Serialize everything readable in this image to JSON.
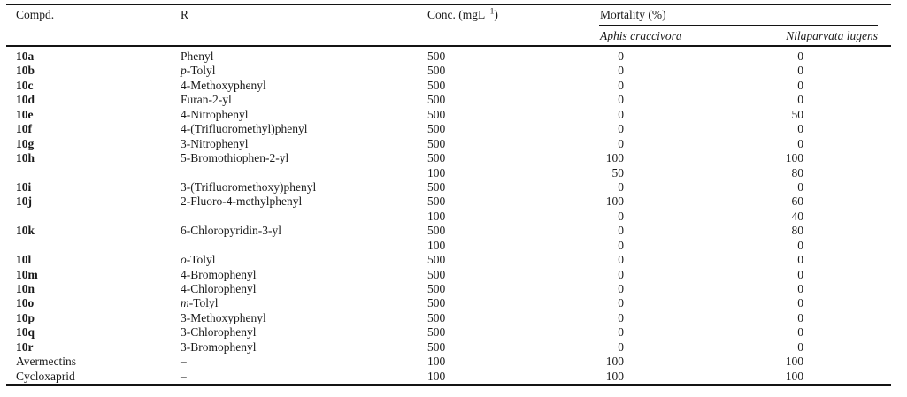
{
  "colors": {
    "background": "#ffffff",
    "text": "#1a1a1a",
    "rule": "#141414"
  },
  "table": {
    "header": {
      "compd": "Compd.",
      "r": "R",
      "conc_prefix": "Conc. (mgL",
      "conc_sup": "−1",
      "conc_suffix": ")",
      "mortality": "Mortality (%)",
      "species": [
        {
          "label": "Aphis craccivora"
        },
        {
          "label": "Nilaparvata lugens"
        }
      ]
    },
    "rows": [
      {
        "compd": "10a",
        "bold": true,
        "r_em": "",
        "r": "Phenyl",
        "conc": "500",
        "aphis": "0",
        "nila": "0"
      },
      {
        "compd": "10b",
        "bold": true,
        "r_em": "p",
        "r": "-Tolyl",
        "conc": "500",
        "aphis": "0",
        "nila": "0"
      },
      {
        "compd": "10c",
        "bold": true,
        "r_em": "",
        "r": "4-Methoxyphenyl",
        "conc": "500",
        "aphis": "0",
        "nila": "0"
      },
      {
        "compd": "10d",
        "bold": true,
        "r_em": "",
        "r": "Furan-2-yl",
        "conc": "500",
        "aphis": "0",
        "nila": "0"
      },
      {
        "compd": "10e",
        "bold": true,
        "r_em": "",
        "r": "4-Nitrophenyl",
        "conc": "500",
        "aphis": "0",
        "nila": "50"
      },
      {
        "compd": "10f",
        "bold": true,
        "r_em": "",
        "r": "4-(Trifluoromethyl)phenyl",
        "conc": "500",
        "aphis": "0",
        "nila": "0"
      },
      {
        "compd": "10g",
        "bold": true,
        "r_em": "",
        "r": "3-Nitrophenyl",
        "conc": "500",
        "aphis": "0",
        "nila": "0"
      },
      {
        "compd": "10h",
        "bold": true,
        "r_em": "",
        "r": "5-Bromothiophen-2-yl",
        "conc": "500",
        "aphis": "100",
        "nila": "100"
      },
      {
        "compd": "",
        "bold": false,
        "r_em": "",
        "r": "",
        "conc": "100",
        "aphis": "50",
        "nila": "80"
      },
      {
        "compd": "10i",
        "bold": true,
        "r_em": "",
        "r": "3-(Trifluoromethoxy)phenyl",
        "conc": "500",
        "aphis": "0",
        "nila": "0"
      },
      {
        "compd": "10j",
        "bold": true,
        "r_em": "",
        "r": "2-Fluoro-4-methylphenyl",
        "conc": "500",
        "aphis": "100",
        "nila": "60"
      },
      {
        "compd": "",
        "bold": false,
        "r_em": "",
        "r": "",
        "conc": "100",
        "aphis": "0",
        "nila": "40"
      },
      {
        "compd": "10k",
        "bold": true,
        "r_em": "",
        "r": "6-Chloropyridin-3-yl",
        "conc": "500",
        "aphis": "0",
        "nila": "80"
      },
      {
        "compd": "",
        "bold": false,
        "r_em": "",
        "r": "",
        "conc": "100",
        "aphis": "0",
        "nila": "0"
      },
      {
        "compd": "10l",
        "bold": true,
        "r_em": "o",
        "r": "-Tolyl",
        "conc": "500",
        "aphis": "0",
        "nila": "0"
      },
      {
        "compd": "10m",
        "bold": true,
        "r_em": "",
        "r": "4-Bromophenyl",
        "conc": "500",
        "aphis": "0",
        "nila": "0"
      },
      {
        "compd": "10n",
        "bold": true,
        "r_em": "",
        "r": "4-Chlorophenyl",
        "conc": "500",
        "aphis": "0",
        "nila": "0"
      },
      {
        "compd": "10o",
        "bold": true,
        "r_em": "m",
        "r": "-Tolyl",
        "conc": "500",
        "aphis": "0",
        "nila": "0"
      },
      {
        "compd": "10p",
        "bold": true,
        "r_em": "",
        "r": "3-Methoxyphenyl",
        "conc": "500",
        "aphis": "0",
        "nila": "0"
      },
      {
        "compd": "10q",
        "bold": true,
        "r_em": "",
        "r": "3-Chlorophenyl",
        "conc": "500",
        "aphis": "0",
        "nila": "0"
      },
      {
        "compd": "10r",
        "bold": true,
        "r_em": "",
        "r": "3-Bromophenyl",
        "conc": "500",
        "aphis": "0",
        "nila": "0"
      },
      {
        "compd": "Avermectins",
        "bold": false,
        "r_em": "",
        "r": "–",
        "conc": "100",
        "aphis": "100",
        "nila": "100"
      },
      {
        "compd": "Cycloxaprid",
        "bold": false,
        "r_em": "",
        "r": "–",
        "conc": "100",
        "aphis": "100",
        "nila": "100"
      }
    ]
  }
}
